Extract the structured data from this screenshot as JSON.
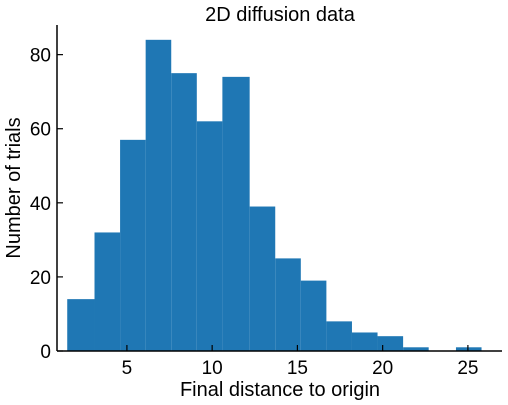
{
  "chart_data": {
    "type": "bar",
    "title": "2D diffusion data",
    "xlabel": "Final distance to origin",
    "ylabel": "Number of trials",
    "xlim": [
      0.9,
      27.0
    ],
    "ylim": [
      0,
      88
    ],
    "xticks": [
      5,
      10,
      15,
      20,
      25
    ],
    "yticks": [
      0,
      20,
      40,
      60,
      80
    ],
    "grid": false,
    "color": "#1f77b4",
    "bins": [
      {
        "x0": 1.5,
        "x1": 3.1,
        "value": 14
      },
      {
        "x0": 3.1,
        "x1": 4.6,
        "value": 32
      },
      {
        "x0": 4.6,
        "x1": 6.1,
        "value": 57
      },
      {
        "x0": 6.1,
        "x1": 7.6,
        "value": 84
      },
      {
        "x0": 7.6,
        "x1": 9.1,
        "value": 75
      },
      {
        "x0": 9.1,
        "x1": 10.6,
        "value": 62
      },
      {
        "x0": 10.6,
        "x1": 12.2,
        "value": 74
      },
      {
        "x0": 12.2,
        "x1": 13.7,
        "value": 39
      },
      {
        "x0": 13.7,
        "x1": 15.2,
        "value": 25
      },
      {
        "x0": 15.2,
        "x1": 16.7,
        "value": 19
      },
      {
        "x0": 16.7,
        "x1": 18.2,
        "value": 8
      },
      {
        "x0": 18.2,
        "x1": 19.7,
        "value": 5
      },
      {
        "x0": 19.7,
        "x1": 21.2,
        "value": 4
      },
      {
        "x0": 21.2,
        "x1": 22.7,
        "value": 1
      },
      {
        "x0": 22.7,
        "x1": 24.3,
        "value": 0
      },
      {
        "x0": 24.3,
        "x1": 25.8,
        "value": 1
      }
    ]
  }
}
